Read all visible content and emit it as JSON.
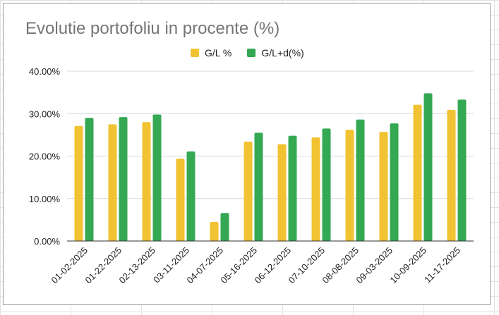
{
  "chart_data": {
    "type": "bar",
    "title": "Evolutie portofoliu in procente (%)",
    "xlabel": "",
    "ylabel": "",
    "ylim": [
      0,
      40
    ],
    "yticks": [
      "0.00%",
      "10.00%",
      "20.00%",
      "30.00%",
      "40.00%"
    ],
    "grid": true,
    "legend_position": "top",
    "categories": [
      "01-02-2025",
      "01-22-2025",
      "02-13-2025",
      "03-11-2025",
      "04-07-2025",
      "05-16-2025",
      "06-12-2025",
      "07-10-2025",
      "08-08-2025",
      "09-03-2025",
      "10-09-2025",
      "11-17-2025"
    ],
    "series": [
      {
        "name": "G/L %",
        "color": "#f1c232",
        "values": [
          27.1,
          27.5,
          28.0,
          19.4,
          4.5,
          23.4,
          22.8,
          24.4,
          26.2,
          25.7,
          32.1,
          30.9
        ]
      },
      {
        "name": "G/L+d(%)",
        "color": "#34a853",
        "values": [
          29.0,
          29.2,
          29.8,
          21.1,
          6.6,
          25.5,
          24.8,
          26.5,
          28.6,
          27.7,
          34.8,
          33.3
        ]
      }
    ]
  }
}
